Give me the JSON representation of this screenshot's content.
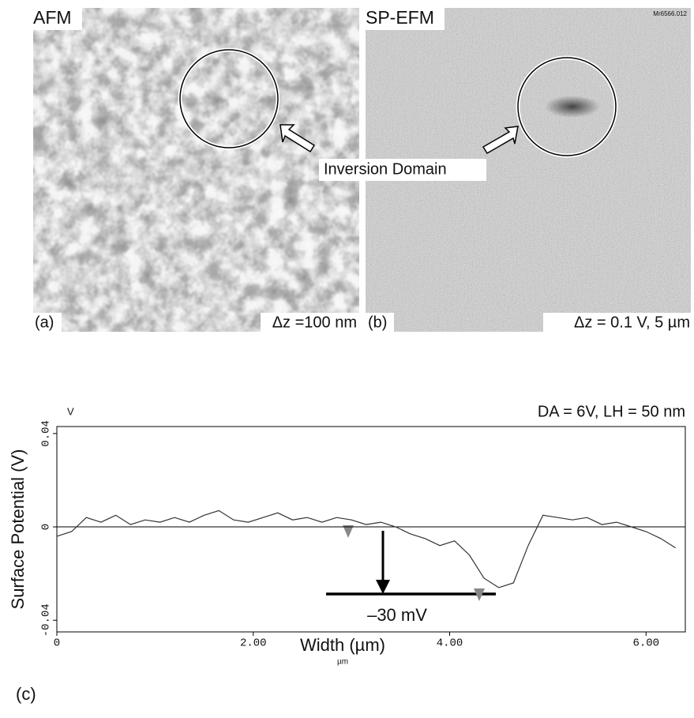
{
  "panels": [
    {
      "label": "AFM",
      "panel": "(a)",
      "scale": "Δz =100 nm"
    },
    {
      "label": "SP-EFM",
      "panel": "(b)",
      "scale": "Δz = 0.1 V, 5 µm",
      "id": "Mr6566.012"
    }
  ],
  "annotation": "Inversion Domain",
  "chart_data": {
    "type": "line",
    "panel": "(c)",
    "y_unit": "V",
    "subtitle": "DA = 6V,  LH = 50 nm",
    "x_label": "Width (µm)",
    "x_unit": "µm",
    "y_label": "Surface Potential (V)",
    "annotation": "–30 mV",
    "x": [
      0,
      0.15,
      0.3,
      0.45,
      0.6,
      0.75,
      0.9,
      1.05,
      1.2,
      1.35,
      1.5,
      1.65,
      1.8,
      1.95,
      2.1,
      2.25,
      2.4,
      2.55,
      2.7,
      2.85,
      3.0,
      3.15,
      3.3,
      3.45,
      3.6,
      3.75,
      3.9,
      4.05,
      4.2,
      4.35,
      4.5,
      4.65,
      4.8,
      4.95,
      5.1,
      5.25,
      5.4,
      5.55,
      5.7,
      5.85,
      6.0,
      6.15,
      6.3
    ],
    "values": [
      -0.004,
      -0.002,
      0.004,
      0.002,
      0.005,
      0.001,
      0.003,
      0.002,
      0.004,
      0.002,
      0.005,
      0.007,
      0.003,
      0.002,
      0.004,
      0.006,
      0.003,
      0.004,
      0.002,
      0.004,
      0.003,
      0.001,
      0.002,
      0.0,
      -0.003,
      -0.005,
      -0.008,
      -0.006,
      -0.012,
      -0.022,
      -0.026,
      -0.024,
      -0.008,
      0.005,
      0.004,
      0.003,
      0.004,
      0.001,
      0.002,
      0.0,
      -0.002,
      -0.005,
      -0.009
    ],
    "color": "#333333",
    "xlim": [
      0,
      6.4
    ],
    "ylim": [
      -0.045,
      0.043
    ],
    "xticks": [
      0,
      {
        "value": 2,
        "label": "2.00"
      },
      {
        "value": 4,
        "label": "4.00"
      },
      {
        "value": 6,
        "label": "6.00"
      }
    ],
    "yticks": [
      -0.04,
      0,
      0.04
    ],
    "zero_line": true
  }
}
